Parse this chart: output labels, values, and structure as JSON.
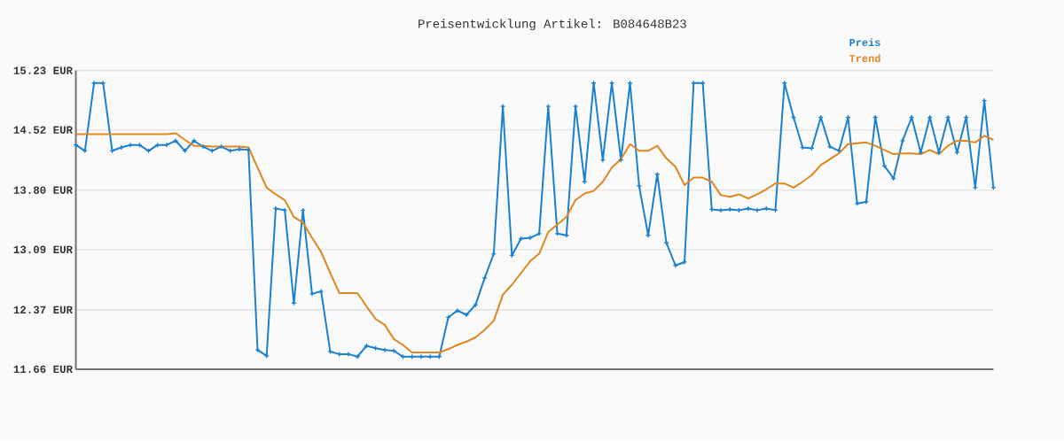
{
  "chart_data": {
    "type": "line",
    "title": "Preisentwicklung Artikel: B084648B23",
    "categories": [
      null,
      null,
      null,
      null,
      null,
      null,
      null,
      null,
      null,
      null,
      null,
      null,
      null,
      null,
      null,
      null,
      null,
      null,
      null,
      null,
      null,
      null,
      null,
      null,
      null,
      null,
      null,
      null,
      null,
      null,
      null,
      null,
      null,
      null,
      null,
      null,
      null,
      null,
      null,
      null,
      null,
      null,
      null,
      null,
      null,
      null,
      null,
      null,
      null,
      null,
      null,
      null,
      null,
      null,
      null,
      null,
      null,
      null,
      null,
      null,
      null,
      null,
      null,
      null,
      null,
      null,
      null,
      null,
      null,
      null,
      null,
      null,
      null,
      null,
      null,
      null,
      null,
      null,
      null,
      null,
      null,
      null,
      null,
      null,
      null,
      null,
      null,
      null,
      null,
      null,
      null,
      null,
      null,
      null,
      null,
      null,
      null,
      null,
      null,
      null,
      null,
      null
    ],
    "series": [
      {
        "name": "Preis",
        "color": "#1a80d0",
        "marker": "cross",
        "values": [
          14.34,
          14.27,
          15.08,
          15.08,
          14.27,
          14.31,
          14.34,
          14.34,
          14.27,
          14.34,
          14.34,
          14.39,
          14.27,
          14.39,
          14.32,
          14.27,
          14.32,
          14.27,
          14.29,
          14.28,
          11.89,
          11.82,
          13.58,
          13.56,
          12.45,
          13.56,
          12.56,
          12.59,
          11.87,
          11.84,
          11.84,
          11.81,
          11.94,
          11.91,
          11.89,
          11.88,
          11.81,
          11.81,
          11.81,
          11.81,
          11.81,
          12.28,
          12.36,
          12.31,
          12.43,
          12.75,
          13.04,
          14.8,
          13.02,
          13.22,
          13.23,
          13.28,
          14.8,
          13.28,
          13.26,
          14.8,
          13.9,
          15.08,
          14.16,
          15.08,
          14.16,
          15.08,
          13.85,
          13.26,
          13.99,
          13.17,
          12.9,
          12.94,
          15.08,
          15.08,
          13.57,
          13.56,
          13.57,
          13.56,
          13.58,
          13.56,
          13.58,
          13.56,
          15.08,
          14.67,
          14.31,
          14.3,
          14.67,
          14.32,
          14.27,
          14.67,
          13.64,
          13.66,
          14.67,
          14.09,
          13.94,
          14.39,
          14.67,
          14.25,
          14.67,
          14.25,
          14.67,
          14.25,
          14.67,
          13.83,
          14.87,
          13.83
        ]
      },
      {
        "name": "Trend",
        "color": "#e0861e",
        "marker": "none",
        "values": [
          14.47,
          14.47,
          14.47,
          14.47,
          14.47,
          14.47,
          14.47,
          14.47,
          14.47,
          14.47,
          14.47,
          14.48,
          14.4,
          14.33,
          14.33,
          14.32,
          14.32,
          14.32,
          14.32,
          14.31,
          14.07,
          13.83,
          13.75,
          13.68,
          13.48,
          13.41,
          13.23,
          13.06,
          12.81,
          12.57,
          12.57,
          12.57,
          12.41,
          12.26,
          12.19,
          12.02,
          11.95,
          11.86,
          11.86,
          11.86,
          11.86,
          11.9,
          11.95,
          11.99,
          12.04,
          12.13,
          12.24,
          12.55,
          12.67,
          12.81,
          12.95,
          13.04,
          13.3,
          13.39,
          13.48,
          13.68,
          13.76,
          13.79,
          13.9,
          14.07,
          14.17,
          14.35,
          14.27,
          14.27,
          14.33,
          14.18,
          14.08,
          13.86,
          13.95,
          13.95,
          13.9,
          13.74,
          13.72,
          13.75,
          13.7,
          13.75,
          13.81,
          13.88,
          13.88,
          13.83,
          13.9,
          13.98,
          14.1,
          14.17,
          14.24,
          14.35,
          14.36,
          14.37,
          14.33,
          14.28,
          14.23,
          14.24,
          14.24,
          14.23,
          14.28,
          14.23,
          14.33,
          14.39,
          14.39,
          14.37,
          14.45,
          14.4
        ]
      }
    ],
    "ylim": [
      11.66,
      15.23
    ],
    "yticks": [
      {
        "value": 11.66,
        "label": "11.66 EUR"
      },
      {
        "value": 12.37,
        "label": "12.37 EUR"
      },
      {
        "value": 13.09,
        "label": "13.09 EUR"
      },
      {
        "value": 13.8,
        "label": "13.80 EUR"
      },
      {
        "value": 14.52,
        "label": "14.52 EUR"
      },
      {
        "value": 15.23,
        "label": "15.23 EUR"
      }
    ],
    "grid": "y",
    "legend": "top right",
    "tick_labels": "y"
  }
}
